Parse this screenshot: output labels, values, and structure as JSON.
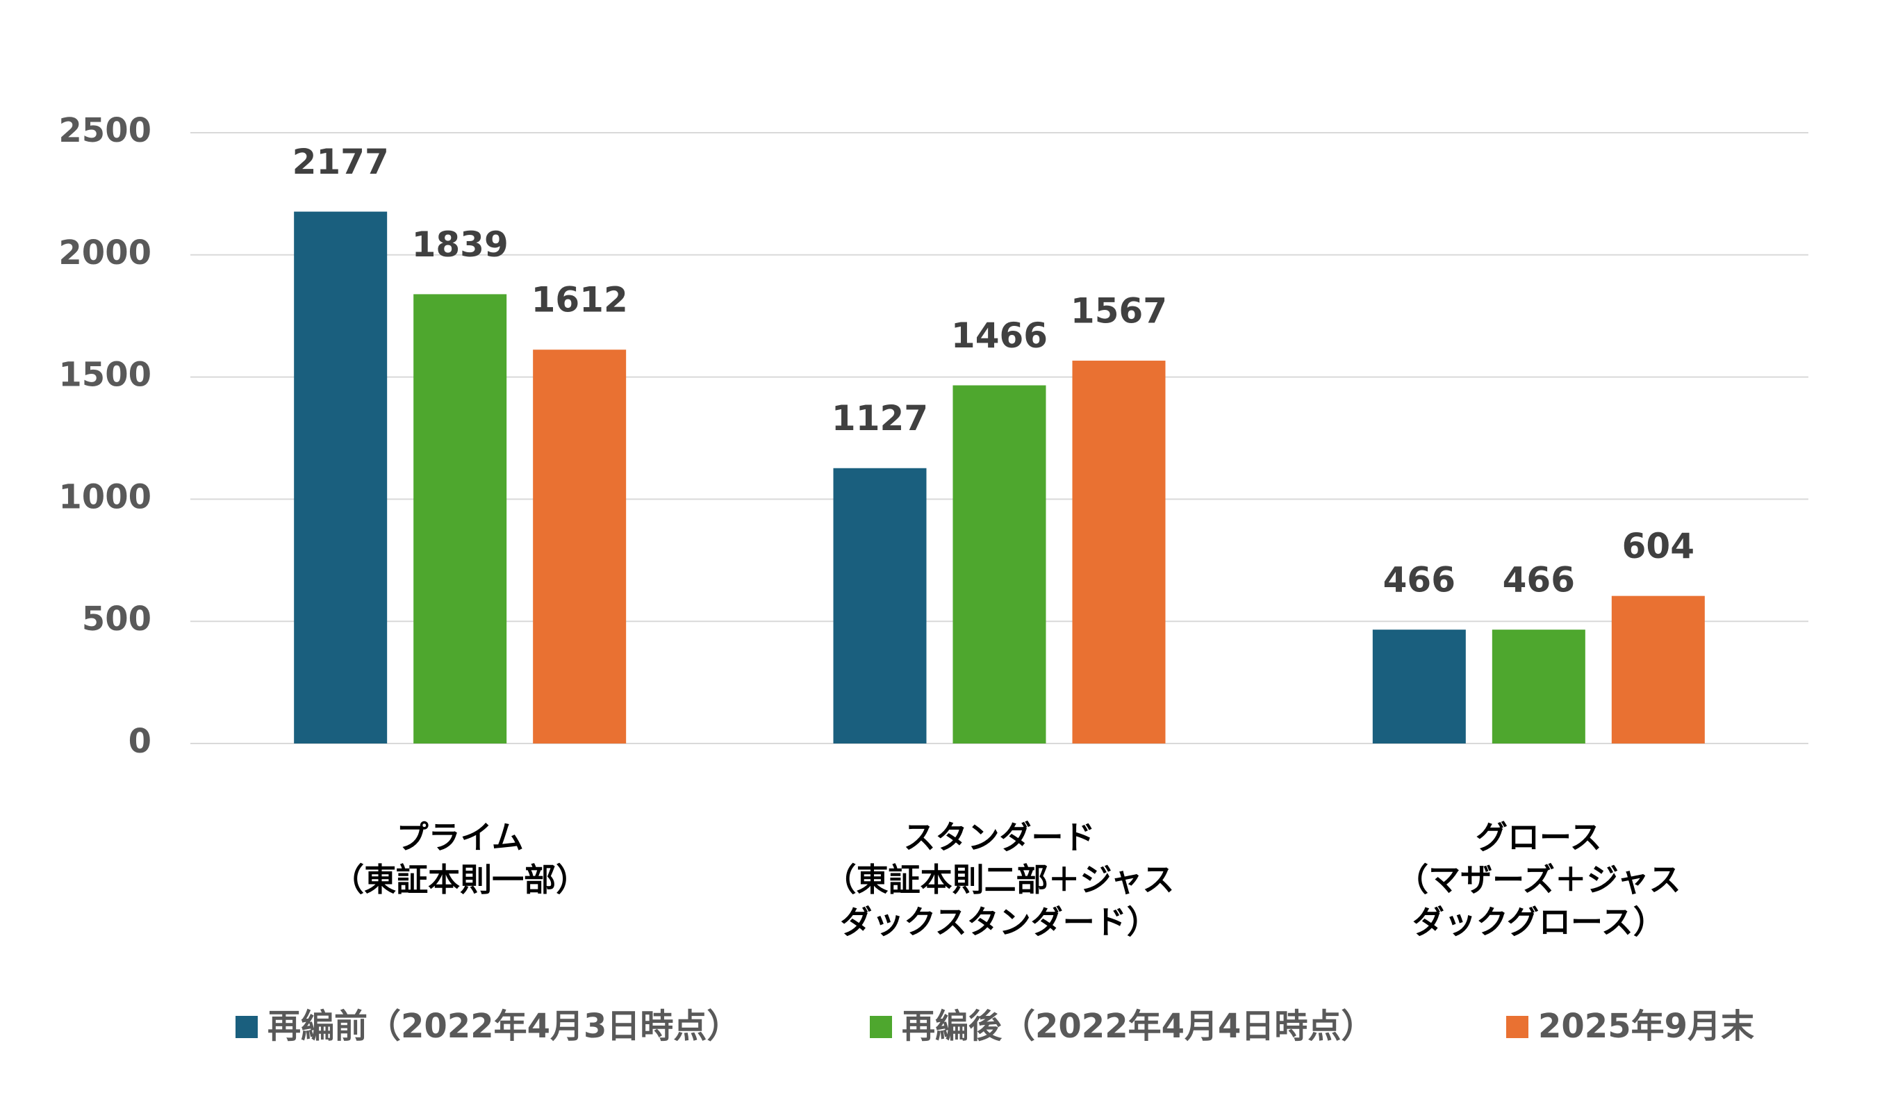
{
  "chart_data": {
    "type": "bar",
    "categories": [
      "プライム\n（東証本則一部）",
      "スタンダード\n（東証本則二部＋ジャス\nダックスタンダード）",
      "グロース\n（マザーズ＋ジャス\nダックグロース）"
    ],
    "series": [
      {
        "name": "再編前（2022年4月3日時点）",
        "color": "#1a5f7e",
        "values": [
          2177,
          1127,
          466
        ]
      },
      {
        "name": "再編後（2022年4月4日時点）",
        "color": "#4ea72e",
        "values": [
          1839,
          1466,
          466
        ]
      },
      {
        "name": "2025年9月末",
        "color": "#e97132",
        "values": [
          1612,
          1567,
          604
        ]
      }
    ],
    "ylim": [
      0,
      2500
    ],
    "yticks": [
      0,
      500,
      1000,
      1500,
      2000,
      2500
    ],
    "grid": true,
    "legend": "bottom"
  }
}
